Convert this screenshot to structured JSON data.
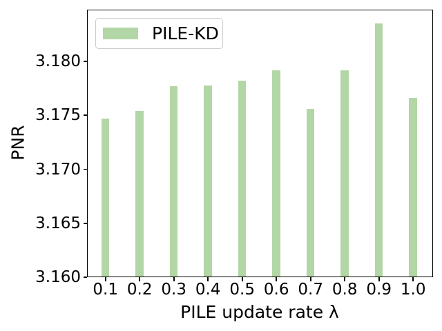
{
  "chart_data": {
    "type": "bar",
    "title": "",
    "xlabel": "PILE update rate λ",
    "ylabel": "PNR",
    "categories": [
      "0.1",
      "0.2",
      "0.3",
      "0.4",
      "0.5",
      "0.6",
      "0.7",
      "0.8",
      "0.9",
      "1.0"
    ],
    "series": [
      {
        "name": "PILE-KD",
        "values": [
          3.1747,
          3.1754,
          3.1777,
          3.1778,
          3.1782,
          3.1792,
          3.1756,
          3.1792,
          3.1835,
          3.1766
        ]
      }
    ],
    "ylim": [
      3.16,
      3.1848
    ],
    "yticks": [
      "3.160",
      "3.165",
      "3.170",
      "3.175",
      "3.180"
    ],
    "legend": {
      "label": "PILE-KD",
      "position": "upper-left"
    },
    "grid": false,
    "colors": {
      "bar": "#b3d6a6",
      "spine": "#000000",
      "legend_border": "#cccccc",
      "text": "#000000"
    }
  }
}
